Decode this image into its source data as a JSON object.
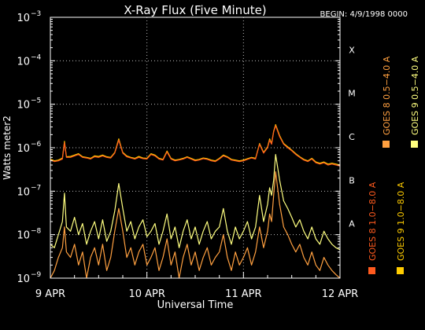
{
  "chart_data": {
    "type": "line",
    "title": "X-Ray Flux (Five Minute)",
    "begin_label": "BEGIN: 4/9/1998 0000",
    "xlabel": "Universal Time",
    "ylabel": "Watts meter2",
    "y_scale": "log",
    "ylim": [
      1e-09,
      0.001
    ],
    "xlim": [
      0,
      72
    ],
    "x_unit": "hours since 1998-04-09 00:00 UT",
    "y_ticks": [
      {
        "value": 1e-09,
        "base": "10",
        "exp": "−9"
      },
      {
        "value": 1e-08,
        "base": "10",
        "exp": "−8"
      },
      {
        "value": 1e-07,
        "base": "10",
        "exp": "−7"
      },
      {
        "value": 1e-06,
        "base": "10",
        "exp": "−6"
      },
      {
        "value": 1e-05,
        "base": "10",
        "exp": "−5"
      },
      {
        "value": 0.0001,
        "base": "10",
        "exp": "−4"
      },
      {
        "value": 0.001,
        "base": "10",
        "exp": "−3"
      }
    ],
    "x_ticks": [
      {
        "value": 0,
        "label": "9 APR"
      },
      {
        "value": 24,
        "label": "10 APR"
      },
      {
        "value": 48,
        "label": "11 APR"
      },
      {
        "value": 72,
        "label": "12 APR"
      }
    ],
    "flare_classes": [
      {
        "label": "A",
        "value": 1e-08
      },
      {
        "label": "B",
        "value": 1e-07
      },
      {
        "label": "C",
        "value": 1e-06
      },
      {
        "label": "M",
        "value": 1e-05
      },
      {
        "label": "X",
        "value": 0.0001
      }
    ],
    "grid": {
      "horizontal": "dotted at decades 1e-8..1e-4",
      "vertical": "dotted at day boundaries"
    },
    "legend_position": "right, vertical",
    "series": [
      {
        "name": "GOES 8 1.0−8.0 A",
        "color": "#ff5a1e",
        "x": [
          0,
          1,
          2,
          3,
          3.5,
          4,
          5,
          6,
          7,
          8,
          9,
          10,
          11,
          12,
          13,
          14,
          15,
          16,
          17,
          18,
          19,
          20,
          21,
          22,
          23,
          24,
          25,
          26,
          27,
          28,
          29,
          30,
          31,
          32,
          33,
          34,
          35,
          36,
          37,
          38,
          39,
          40,
          41,
          42,
          43,
          44,
          45,
          46,
          47,
          48,
          49,
          50,
          51,
          52,
          53,
          54,
          54.5,
          55,
          55.5,
          56,
          57,
          58,
          59,
          60,
          61,
          62,
          63,
          64,
          65,
          66,
          67,
          68,
          69,
          70,
          71,
          72
        ],
        "values": [
          5.2e-07,
          4.8e-07,
          5e-07,
          5.5e-07,
          1.3e-06,
          6e-07,
          6e-07,
          6.5e-07,
          7e-07,
          6e-07,
          5.8e-07,
          5.5e-07,
          6.2e-07,
          6e-07,
          6.5e-07,
          6e-07,
          5.8e-07,
          7.5e-07,
          1.5e-06,
          7.5e-07,
          6.2e-07,
          5.8e-07,
          5.5e-07,
          6e-07,
          5.6e-07,
          5.5e-07,
          7e-07,
          6.5e-07,
          5.5e-07,
          5.2e-07,
          8e-07,
          5.5e-07,
          5e-07,
          5.2e-07,
          5.5e-07,
          6e-07,
          5.5e-07,
          5e-07,
          5.2e-07,
          5.6e-07,
          5.4e-07,
          5e-07,
          4.8e-07,
          5.5e-07,
          6.5e-07,
          6e-07,
          5.2e-07,
          5e-07,
          4.8e-07,
          5e-07,
          5.4e-07,
          5.8e-07,
          5.5e-07,
          1.2e-06,
          7.5e-07,
          1e-06,
          1.5e-06,
          1.2e-06,
          2.3e-06,
          3.2e-06,
          1.8e-06,
          1.2e-06,
          1e-06,
          8.5e-07,
          7e-07,
          6e-07,
          5.2e-07,
          4.8e-07,
          5.5e-07,
          4.5e-07,
          4.2e-07,
          4.5e-07,
          4e-07,
          4.2e-07,
          4e-07,
          3.8e-07
        ]
      },
      {
        "name": "GOES 8 0.5−4.0 A",
        "color": "#ffa040",
        "x": [
          0,
          1,
          2,
          3,
          3.5,
          4,
          5,
          6,
          7,
          8,
          9,
          10,
          11,
          12,
          13,
          14,
          15,
          16,
          17,
          18,
          19,
          20,
          21,
          22,
          23,
          24,
          25,
          26,
          27,
          28,
          29,
          30,
          31,
          32,
          33,
          34,
          35,
          36,
          37,
          38,
          39,
          40,
          41,
          42,
          43,
          44,
          45,
          46,
          47,
          48,
          49,
          50,
          51,
          52,
          53,
          54,
          54.5,
          55,
          55.5,
          56,
          57,
          58,
          59,
          60,
          61,
          62,
          63,
          64,
          65,
          66,
          67,
          68,
          69,
          70,
          71,
          72
        ],
        "values": [
          1e-09,
          1.5e-09,
          3e-09,
          5e-09,
          1.5e-08,
          4e-09,
          3e-09,
          6e-09,
          2e-09,
          4e-09,
          1e-09,
          3e-09,
          5e-09,
          2e-09,
          6e-09,
          1.5e-09,
          3e-09,
          1.2e-08,
          4e-08,
          1.2e-08,
          3e-09,
          5e-09,
          2e-09,
          4e-09,
          6e-09,
          2e-09,
          3e-09,
          5e-09,
          1.5e-09,
          3e-09,
          8e-09,
          2e-09,
          4e-09,
          1e-09,
          3e-09,
          6e-09,
          2e-09,
          4e-09,
          1.5e-09,
          3e-09,
          5e-09,
          2e-09,
          3e-09,
          4e-09,
          1e-08,
          3e-09,
          1.5e-09,
          4e-09,
          2e-09,
          3e-09,
          5e-09,
          2e-09,
          4e-09,
          1.5e-08,
          5e-09,
          1.2e-08,
          3e-08,
          2e-08,
          8e-08,
          2.8e-07,
          5e-08,
          1.5e-08,
          1e-08,
          6e-09,
          4e-09,
          6e-09,
          3e-09,
          2e-09,
          4e-09,
          2e-09,
          1.5e-09,
          3e-09,
          2e-09,
          1.5e-09,
          1.2e-09,
          1e-09
        ]
      },
      {
        "name": "GOES 9 1.0−8.0 A",
        "color": "#ffcc00",
        "x": [
          0,
          1,
          2,
          3,
          3.5,
          4,
          5,
          6,
          7,
          8,
          9,
          10,
          11,
          12,
          13,
          14,
          15,
          16,
          17,
          18,
          19,
          20,
          21,
          22,
          23,
          24,
          25,
          26,
          27,
          28,
          29,
          30,
          31,
          32,
          33,
          34,
          35,
          36,
          37,
          38,
          39,
          40,
          41,
          42,
          43,
          44,
          45,
          46,
          47,
          48,
          49,
          50,
          51,
          52,
          53,
          54,
          54.5,
          55,
          55.5,
          56,
          57,
          58,
          59,
          60,
          61,
          62,
          63,
          64,
          65,
          66,
          67,
          68,
          69,
          70,
          71,
          72
        ],
        "values": [
          5.5e-07,
          5e-07,
          5.2e-07,
          5.8e-07,
          1.4e-06,
          6.2e-07,
          6.3e-07,
          6.8e-07,
          7.3e-07,
          6.2e-07,
          6e-07,
          5.7e-07,
          6.5e-07,
          6.3e-07,
          6.8e-07,
          6.2e-07,
          6e-07,
          7.8e-07,
          1.6e-06,
          7.8e-07,
          6.5e-07,
          6e-07,
          5.7e-07,
          6.3e-07,
          5.8e-07,
          5.7e-07,
          7.3e-07,
          6.8e-07,
          5.7e-07,
          5.4e-07,
          8.4e-07,
          5.7e-07,
          5.2e-07,
          5.4e-07,
          5.7e-07,
          6.2e-07,
          5.7e-07,
          5.2e-07,
          5.4e-07,
          5.8e-07,
          5.6e-07,
          5.2e-07,
          5e-07,
          5.7e-07,
          6.8e-07,
          6.2e-07,
          5.4e-07,
          5.2e-07,
          5e-07,
          5.2e-07,
          5.6e-07,
          6e-07,
          5.7e-07,
          1.25e-06,
          7.8e-07,
          1.05e-06,
          1.6e-06,
          1.25e-06,
          2.4e-06,
          3.4e-06,
          1.9e-06,
          1.25e-06,
          1.05e-06,
          8.8e-07,
          7.3e-07,
          6.2e-07,
          5.4e-07,
          5e-07,
          5.7e-07,
          4.7e-07,
          4.4e-07,
          4.7e-07,
          4.2e-07,
          4.4e-07,
          4.2e-07,
          4e-07
        ]
      },
      {
        "name": "GOES 9 0.5−4.0 A",
        "color": "#ffff80",
        "x": [
          0,
          1,
          2,
          3,
          3.5,
          4,
          5,
          6,
          7,
          8,
          9,
          10,
          11,
          12,
          13,
          14,
          15,
          16,
          17,
          18,
          19,
          20,
          21,
          22,
          23,
          24,
          25,
          26,
          27,
          28,
          29,
          30,
          31,
          32,
          33,
          34,
          35,
          36,
          37,
          38,
          39,
          40,
          41,
          42,
          43,
          44,
          45,
          46,
          47,
          48,
          49,
          50,
          51,
          52,
          53,
          54,
          54.5,
          55,
          55.5,
          56,
          57,
          58,
          59,
          60,
          61,
          62,
          63,
          64,
          65,
          66,
          67,
          68,
          69,
          70,
          71,
          72
        ],
        "values": [
          6e-09,
          5e-09,
          1e-08,
          2e-08,
          9e-08,
          1.5e-08,
          1.2e-08,
          2.5e-08,
          1e-08,
          1.8e-08,
          6e-09,
          1.2e-08,
          2e-08,
          8e-09,
          2.2e-08,
          7e-09,
          1.2e-08,
          3.5e-08,
          1.5e-07,
          4e-08,
          1.2e-08,
          2e-08,
          8e-09,
          1.5e-08,
          2.2e-08,
          9e-09,
          1.2e-08,
          1.8e-08,
          6e-09,
          1.2e-08,
          3e-08,
          8e-09,
          1.5e-08,
          5e-09,
          1.2e-08,
          2.2e-08,
          8e-09,
          1.5e-08,
          6e-09,
          1.2e-08,
          2e-08,
          8e-09,
          1.2e-08,
          1.5e-08,
          4e-08,
          1.2e-08,
          6e-09,
          1.5e-08,
          8e-09,
          1.2e-08,
          2e-08,
          8e-09,
          1.5e-08,
          8e-08,
          2e-08,
          5e-08,
          1.2e-07,
          8e-08,
          1.8e-07,
          7e-07,
          1.8e-07,
          6e-08,
          4e-08,
          2.5e-08,
          1.5e-08,
          2.2e-08,
          1.2e-08,
          8e-09,
          1.5e-08,
          8e-09,
          6e-09,
          1.2e-08,
          8e-09,
          6e-09,
          5e-09,
          4.5e-09
        ]
      }
    ]
  }
}
